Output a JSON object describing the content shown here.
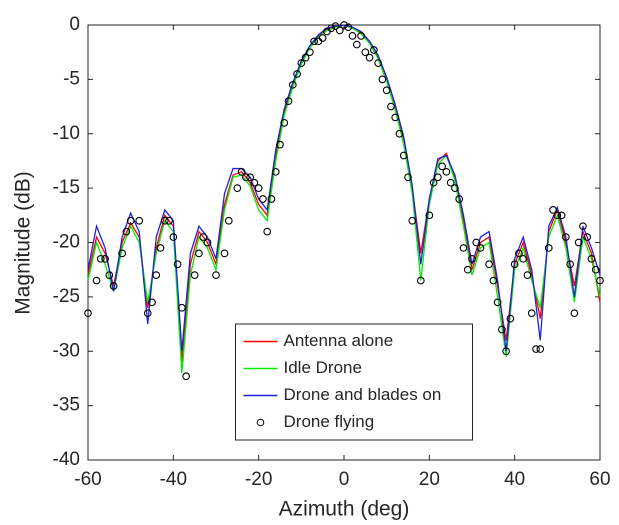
{
  "chart_data": {
    "type": "line",
    "xlabel": "Azimuth (deg)",
    "ylabel": "Magnitude (dB)",
    "xlim": [
      -60,
      60
    ],
    "xticks": [
      -60,
      -40,
      -20,
      0,
      20,
      40,
      60
    ],
    "ylim": [
      -40,
      0
    ],
    "yticks": [
      0,
      -5,
      -10,
      -15,
      -20,
      -25,
      -30,
      -35,
      -40
    ],
    "legend": "lower center",
    "x": [
      -60,
      -58,
      -56,
      -54,
      -52,
      -50,
      -48,
      -46,
      -44,
      -42,
      -40,
      -38,
      -36,
      -34,
      -32,
      -30,
      -28,
      -26,
      -24,
      -22,
      -20,
      -18,
      -16,
      -14,
      -12,
      -10,
      -8,
      -6,
      -4,
      -2,
      0,
      2,
      4,
      6,
      8,
      10,
      12,
      14,
      16,
      18,
      20,
      22,
      24,
      26,
      28,
      30,
      32,
      34,
      36,
      38,
      40,
      42,
      44,
      46,
      48,
      50,
      52,
      54,
      56,
      58,
      60
    ],
    "series": [
      {
        "name": "Antenna alone",
        "color": "#ff0000",
        "values": [
          -23,
          -19.5,
          -21,
          -24,
          -20,
          -18.2,
          -19.5,
          -26,
          -20.5,
          -17.5,
          -18.5,
          -31,
          -22,
          -19,
          -20,
          -22,
          -16.5,
          -13.8,
          -13.5,
          -14.5,
          -16.5,
          -17.5,
          -12,
          -8,
          -5.5,
          -3.5,
          -2,
          -1,
          -0.4,
          -0.1,
          0,
          -0.2,
          -0.7,
          -1.6,
          -3,
          -5,
          -7.5,
          -10.5,
          -15,
          -21,
          -16,
          -12.5,
          -11.8,
          -14,
          -18,
          -22.5,
          -20,
          -19.5,
          -24,
          -29,
          -22,
          -20,
          -23,
          -27,
          -19,
          -17,
          -20,
          -24,
          -19,
          -21,
          -25.5
        ]
      },
      {
        "name": "Idle Drone",
        "color": "#00ee00",
        "values": [
          -23.5,
          -20,
          -22,
          -24.5,
          -20.5,
          -18.5,
          -20,
          -25.5,
          -21,
          -18,
          -19,
          -32,
          -23,
          -19.5,
          -20.5,
          -22.5,
          -17,
          -14,
          -13.8,
          -14.8,
          -17,
          -18,
          -12.5,
          -8.3,
          -5.7,
          -3.6,
          -2.1,
          -1.1,
          -0.5,
          -0.2,
          0,
          -0.3,
          -0.8,
          -1.7,
          -3.1,
          -5.2,
          -7.8,
          -11,
          -15.5,
          -23.5,
          -16.5,
          -12.8,
          -12,
          -14.3,
          -18.5,
          -23,
          -20.5,
          -20,
          -25,
          -30.5,
          -22.5,
          -20.5,
          -23.5,
          -26,
          -19.5,
          -17.5,
          -20.5,
          -25.5,
          -19.5,
          -21.5,
          -25
        ]
      },
      {
        "name": "Drone and blades on",
        "color": "#2020e0",
        "values": [
          -22.5,
          -18.5,
          -20.5,
          -24.5,
          -19.5,
          -17.3,
          -19,
          -27.5,
          -19.5,
          -17,
          -18,
          -30,
          -21,
          -18.5,
          -19.5,
          -21.5,
          -15.5,
          -13.2,
          -13.2,
          -14,
          -16,
          -17,
          -11.5,
          -7.7,
          -5.3,
          -3.3,
          -1.9,
          -0.9,
          -0.3,
          -0.1,
          0,
          -0.2,
          -0.6,
          -1.5,
          -2.8,
          -4.8,
          -7.3,
          -10.3,
          -14.8,
          -22,
          -16,
          -12.3,
          -12,
          -13.8,
          -17.5,
          -22,
          -19.5,
          -19,
          -23.5,
          -30,
          -21.5,
          -19.5,
          -22.5,
          -29,
          -18.5,
          -16.8,
          -19.5,
          -25,
          -18.5,
          -20.5,
          -23
        ]
      },
      {
        "name": "Drone flying",
        "type": "scatter",
        "color": "#000000",
        "x": [
          -60,
          -58,
          -57,
          -56,
          -55,
          -54,
          -52,
          -51,
          -50,
          -48,
          -46,
          -45,
          -44,
          -43,
          -42,
          -41,
          -40,
          -39,
          -38,
          -37,
          -35,
          -34,
          -33,
          -32,
          -30,
          -28,
          -27,
          -25,
          -24,
          -23,
          -22,
          -21,
          -20,
          -19,
          -18,
          -17,
          -16,
          -15,
          -14,
          -13,
          -12,
          -11,
          -10,
          -9,
          -8,
          -7,
          -6,
          -5,
          -4,
          -3,
          -2,
          -1,
          0,
          1,
          2,
          3,
          4,
          5,
          6,
          7,
          8,
          9,
          10,
          11,
          12,
          13,
          14,
          15,
          16,
          18,
          20,
          21,
          22,
          23,
          24,
          25,
          26,
          27,
          28,
          29,
          30,
          31,
          32,
          34,
          35,
          36,
          37,
          38,
          39,
          40,
          41,
          42,
          43,
          44,
          45,
          46,
          48,
          49,
          50,
          51,
          52,
          53,
          54,
          55,
          56,
          57,
          58,
          59,
          60
        ],
        "values": [
          -26.5,
          -23.5,
          -21.5,
          -21.5,
          -23,
          -24,
          -21,
          -19,
          -18,
          -18,
          -26.5,
          -25.5,
          -23,
          -20.5,
          -18,
          -18,
          -19.5,
          -22,
          -26,
          -32.3,
          -23,
          -21,
          -19.5,
          -20,
          -23,
          -21,
          -18,
          -15,
          -13.5,
          -14,
          -14,
          -14.5,
          -15,
          -16,
          -19,
          -16,
          -13.5,
          -11,
          -9,
          -7,
          -5.5,
          -4.5,
          -3.5,
          -3,
          -2.5,
          -1.5,
          -1.5,
          -1.2,
          -0.6,
          -0.3,
          -0.1,
          -0.5,
          0,
          -0.2,
          -1,
          -1.8,
          -1,
          -2.5,
          -3,
          -2.3,
          -3.5,
          -5,
          -6,
          -7.5,
          -8.5,
          -10,
          -12,
          -14,
          -18,
          -23.5,
          -17.5,
          -14.5,
          -14,
          -13,
          -13.5,
          -14.5,
          -15,
          -16,
          -20.5,
          -22.5,
          -21.5,
          -20,
          -20.5,
          -22,
          -23.5,
          -25.5,
          -28,
          -30,
          -27,
          -22,
          -21,
          -21.5,
          -23,
          -26.5,
          -29.8,
          -29.8,
          -20.5,
          -17,
          -17.5,
          -17.5,
          -19.5,
          -22,
          -26.5,
          -20,
          -18.5,
          -19.5,
          -21.5,
          -22.5,
          -23.5
        ]
      }
    ]
  }
}
